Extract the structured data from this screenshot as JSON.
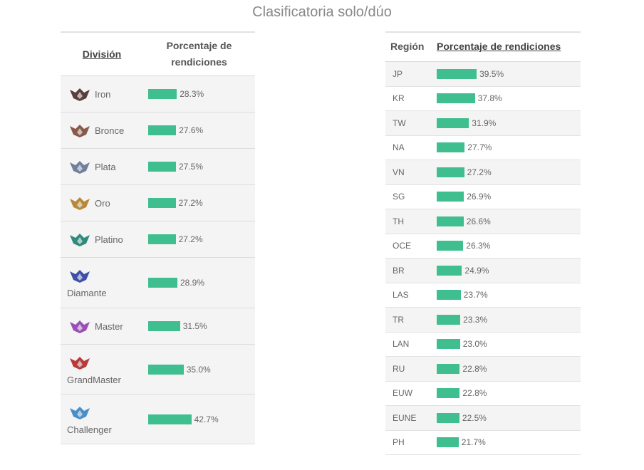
{
  "title": "Clasificatoria solo/dúo",
  "colors": {
    "bar": "#3fbf8f",
    "row_bg": "#f4f4f4"
  },
  "left_table": {
    "header_division": "División",
    "header_percent": "Porcentaje de rendiciones",
    "rows": [
      {
        "division": "Iron",
        "percent_label": "28.3%",
        "value": 28.3,
        "icon": "iron-emblem-icon",
        "emblem_color": "#5a3e3e"
      },
      {
        "division": "Bronce",
        "percent_label": "27.6%",
        "value": 27.6,
        "icon": "bronze-emblem-icon",
        "emblem_color": "#8a5a48"
      },
      {
        "division": "Plata",
        "percent_label": "27.5%",
        "value": 27.5,
        "icon": "silver-emblem-icon",
        "emblem_color": "#6f7f9c"
      },
      {
        "division": "Oro",
        "percent_label": "27.2%",
        "value": 27.2,
        "icon": "gold-emblem-icon",
        "emblem_color": "#b8893a"
      },
      {
        "division": "Platino",
        "percent_label": "27.2%",
        "value": 27.2,
        "icon": "platinum-emblem-icon",
        "emblem_color": "#2f8b7c"
      },
      {
        "division": "Diamante",
        "percent_label": "28.9%",
        "value": 28.9,
        "icon": "diamond-emblem-icon",
        "emblem_color": "#3d4fa8"
      },
      {
        "division": "Master",
        "percent_label": "31.5%",
        "value": 31.5,
        "icon": "master-emblem-icon",
        "emblem_color": "#9a4fb8"
      },
      {
        "division": "GrandMaster",
        "percent_label": "35.0%",
        "value": 35.0,
        "icon": "grandmaster-emblem-icon",
        "emblem_color": "#b83a3a"
      },
      {
        "division": "Challenger",
        "percent_label": "42.7%",
        "value": 42.7,
        "icon": "challenger-emblem-icon",
        "emblem_color": "#4a8fc8"
      }
    ]
  },
  "right_table": {
    "header_region": "Región",
    "header_percent": "Porcentaje de rendiciones",
    "rows": [
      {
        "region": "JP",
        "percent_label": "39.5%",
        "value": 39.5
      },
      {
        "region": "KR",
        "percent_label": "37.8%",
        "value": 37.8
      },
      {
        "region": "TW",
        "percent_label": "31.9%",
        "value": 31.9
      },
      {
        "region": "NA",
        "percent_label": "27.7%",
        "value": 27.7
      },
      {
        "region": "VN",
        "percent_label": "27.2%",
        "value": 27.2
      },
      {
        "region": "SG",
        "percent_label": "26.9%",
        "value": 26.9
      },
      {
        "region": "TH",
        "percent_label": "26.6%",
        "value": 26.6
      },
      {
        "region": "OCE",
        "percent_label": "26.3%",
        "value": 26.3
      },
      {
        "region": "BR",
        "percent_label": "24.9%",
        "value": 24.9
      },
      {
        "region": "LAS",
        "percent_label": "23.7%",
        "value": 23.7
      },
      {
        "region": "TR",
        "percent_label": "23.3%",
        "value": 23.3
      },
      {
        "region": "LAN",
        "percent_label": "23.0%",
        "value": 23.0
      },
      {
        "region": "RU",
        "percent_label": "22.8%",
        "value": 22.8
      },
      {
        "region": "EUW",
        "percent_label": "22.8%",
        "value": 22.8
      },
      {
        "region": "EUNE",
        "percent_label": "22.5%",
        "value": 22.5
      },
      {
        "region": "PH",
        "percent_label": "21.7%",
        "value": 21.7
      }
    ]
  },
  "chart_data": [
    {
      "type": "table",
      "columns": [
        "División",
        "Porcentaje de rendiciones"
      ],
      "categories": [
        "Iron",
        "Bronce",
        "Plata",
        "Oro",
        "Platino",
        "Diamante",
        "Master",
        "GrandMaster",
        "Challenger"
      ],
      "values": [
        28.3,
        27.6,
        27.5,
        27.2,
        27.2,
        28.9,
        31.5,
        35.0,
        42.7
      ]
    },
    {
      "type": "table",
      "columns": [
        "Región",
        "Porcentaje de rendiciones"
      ],
      "categories": [
        "JP",
        "KR",
        "TW",
        "NA",
        "VN",
        "SG",
        "TH",
        "OCE",
        "BR",
        "LAS",
        "TR",
        "LAN",
        "RU",
        "EUW",
        "EUNE",
        "PH"
      ],
      "values": [
        39.5,
        37.8,
        31.9,
        27.7,
        27.2,
        26.9,
        26.6,
        26.3,
        24.9,
        23.7,
        23.3,
        23.0,
        22.8,
        22.8,
        22.5,
        21.7
      ]
    }
  ]
}
